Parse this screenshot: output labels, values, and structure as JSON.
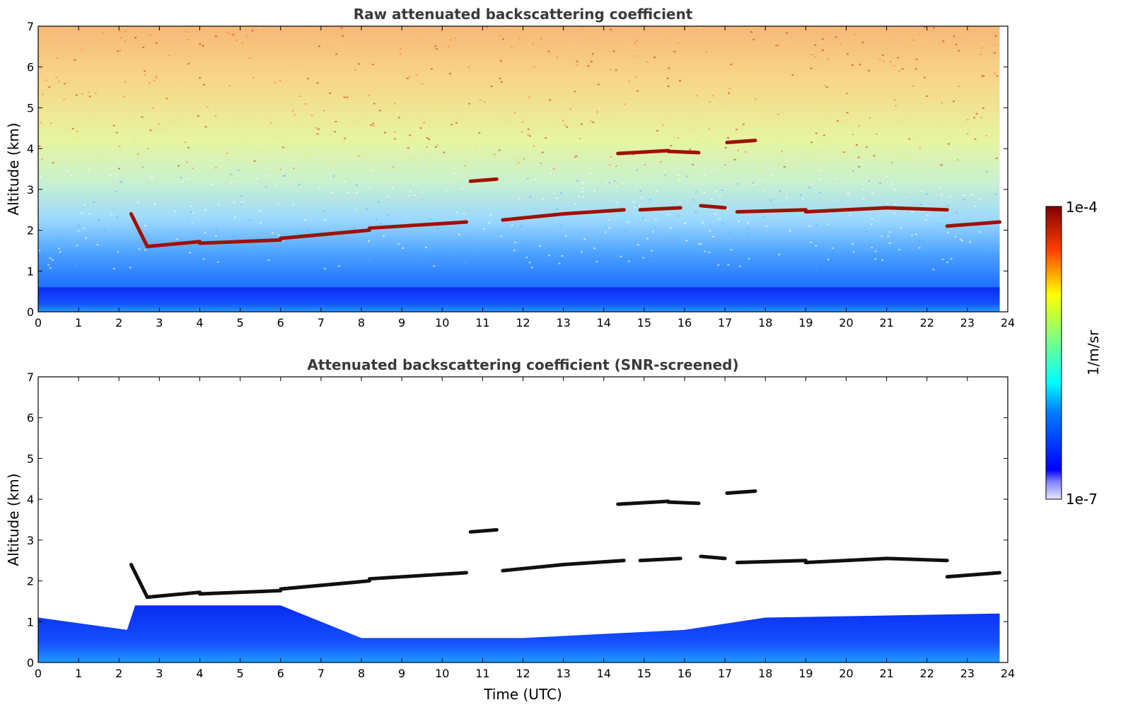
{
  "chart_data": [
    {
      "type": "heatmap",
      "title": "Raw attenuated backscattering coefficient",
      "xlabel": "",
      "ylabel": "Altitude (km)",
      "xlim": [
        0,
        24
      ],
      "ylim": [
        0,
        7
      ],
      "xticks": [
        "0",
        "1",
        "2",
        "3",
        "4",
        "5",
        "6",
        "7",
        "8",
        "9",
        "10",
        "11",
        "12",
        "13",
        "14",
        "15",
        "16",
        "17",
        "18",
        "19",
        "20",
        "21",
        "22",
        "23",
        "24"
      ],
      "yticks": [
        "0",
        "1",
        "2",
        "3",
        "4",
        "5",
        "6",
        "7"
      ],
      "data_end_time": 23.8,
      "cloud_layers": [
        {
          "t": [
            2.3,
            2.7
          ],
          "alt": [
            2.4,
            1.6
          ]
        },
        {
          "t": [
            2.7,
            4.0
          ],
          "alt": [
            1.6,
            1.72
          ]
        },
        {
          "t": [
            4.0,
            6.0
          ],
          "alt": [
            1.68,
            1.76
          ]
        },
        {
          "t": [
            6.0,
            8.2
          ],
          "alt": [
            1.8,
            2.0
          ]
        },
        {
          "t": [
            8.2,
            10.6
          ],
          "alt": [
            2.05,
            2.2
          ]
        },
        {
          "t": [
            10.7,
            11.35
          ],
          "alt": [
            3.2,
            3.25
          ]
        },
        {
          "t": [
            11.5,
            13.0
          ],
          "alt": [
            2.25,
            2.4
          ]
        },
        {
          "t": [
            13.0,
            14.5
          ],
          "alt": [
            2.4,
            2.5
          ]
        },
        {
          "t": [
            14.35,
            15.6
          ],
          "alt": [
            3.88,
            3.95
          ]
        },
        {
          "t": [
            15.6,
            16.35
          ],
          "alt": [
            3.93,
            3.9
          ]
        },
        {
          "t": [
            14.9,
            15.9
          ],
          "alt": [
            2.5,
            2.55
          ]
        },
        {
          "t": [
            16.4,
            17.0
          ],
          "alt": [
            2.6,
            2.55
          ]
        },
        {
          "t": [
            17.05,
            17.75
          ],
          "alt": [
            4.15,
            4.2
          ]
        },
        {
          "t": [
            17.3,
            19.0
          ],
          "alt": [
            2.45,
            2.5
          ]
        },
        {
          "t": [
            19.0,
            21.0
          ],
          "alt": [
            2.45,
            2.55
          ]
        },
        {
          "t": [
            21.0,
            22.5
          ],
          "alt": [
            2.55,
            2.5
          ]
        },
        {
          "t": [
            22.5,
            23.8
          ],
          "alt": [
            2.1,
            2.2
          ]
        }
      ]
    },
    {
      "type": "heatmap",
      "title": "Attenuated backscattering coefficient (SNR-screened)",
      "xlabel": "Time (UTC)",
      "ylabel": "Altitude (km)",
      "xlim": [
        0,
        24
      ],
      "ylim": [
        0,
        7
      ],
      "xticks": [
        "0",
        "1",
        "2",
        "3",
        "4",
        "5",
        "6",
        "7",
        "8",
        "9",
        "10",
        "11",
        "12",
        "13",
        "14",
        "15",
        "16",
        "17",
        "18",
        "19",
        "20",
        "21",
        "22",
        "23",
        "24"
      ],
      "yticks": [
        "0",
        "1",
        "2",
        "3",
        "4",
        "5",
        "6",
        "7"
      ],
      "data_end_time": 23.8
    }
  ],
  "colorbar": {
    "label": "1/m/sr",
    "max_label": "1e-4",
    "min_label": "1e-7",
    "colormap": "jet"
  }
}
